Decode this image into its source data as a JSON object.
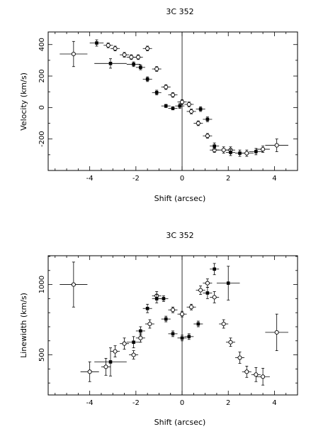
{
  "chart_data": [
    {
      "type": "scatter",
      "title": "3C 352",
      "xlabel": "Shift (arcsec)",
      "ylabel": "Velocity (km/s)",
      "xlim": [
        -5.8,
        5.0
      ],
      "ylim": [
        -400,
        480
      ],
      "xticks": [
        -4,
        -2,
        0,
        2,
        4
      ],
      "yticks": [
        -200,
        0,
        200,
        400
      ],
      "zero_line_x": 0,
      "series": [
        {
          "marker": "open-circle",
          "points": [
            {
              "x": -4.7,
              "y": 340,
              "xerr": 0.6,
              "yerr": 80
            },
            {
              "x": -3.2,
              "y": 395,
              "xerr": 0.2,
              "yerr": 15
            },
            {
              "x": -2.9,
              "y": 375,
              "xerr": 0.2,
              "yerr": 15
            },
            {
              "x": -2.5,
              "y": 335,
              "xerr": 0.2,
              "yerr": 15
            },
            {
              "x": -2.2,
              "y": 320,
              "xerr": 0.2,
              "yerr": 15
            },
            {
              "x": -1.9,
              "y": 320,
              "xerr": 0.2,
              "yerr": 15
            },
            {
              "x": -1.5,
              "y": 375,
              "xerr": 0.2,
              "yerr": 15
            },
            {
              "x": -1.1,
              "y": 245,
              "xerr": 0.2,
              "yerr": 15
            },
            {
              "x": -0.7,
              "y": 130,
              "xerr": 0.2,
              "yerr": 15
            },
            {
              "x": -0.4,
              "y": 80,
              "xerr": 0.2,
              "yerr": 15
            },
            {
              "x": 0.0,
              "y": 35,
              "xerr": 0.2,
              "yerr": 15
            },
            {
              "x": 0.3,
              "y": 20,
              "xerr": 0.2,
              "yerr": 15
            },
            {
              "x": 0.4,
              "y": -25,
              "xerr": 0.2,
              "yerr": 15
            },
            {
              "x": 0.7,
              "y": -100,
              "xerr": 0.2,
              "yerr": 15
            },
            {
              "x": 1.1,
              "y": -180,
              "xerr": 0.2,
              "yerr": 15
            },
            {
              "x": 1.4,
              "y": -270,
              "xerr": 0.2,
              "yerr": 15
            },
            {
              "x": 1.8,
              "y": -270,
              "xerr": 0.3,
              "yerr": 20
            },
            {
              "x": 2.1,
              "y": -270,
              "xerr": 0.2,
              "yerr": 20
            },
            {
              "x": 2.8,
              "y": -290,
              "xerr": 0.3,
              "yerr": 20
            },
            {
              "x": 3.5,
              "y": -265,
              "xerr": 0.3,
              "yerr": 20
            },
            {
              "x": 4.1,
              "y": -240,
              "xerr": 0.5,
              "yerr": 40
            }
          ]
        },
        {
          "marker": "filled-square",
          "points": [
            {
              "x": -3.7,
              "y": 410,
              "xerr": 0.3,
              "yerr": 20
            },
            {
              "x": -3.1,
              "y": 280,
              "xerr": 0.7,
              "yerr": 30
            },
            {
              "x": -2.1,
              "y": 275,
              "xerr": 0.3,
              "yerr": 15
            },
            {
              "x": -1.8,
              "y": 255,
              "xerr": 0.2,
              "yerr": 15
            },
            {
              "x": -1.5,
              "y": 180,
              "xerr": 0.2,
              "yerr": 15
            },
            {
              "x": -1.1,
              "y": 95,
              "xerr": 0.2,
              "yerr": 15
            },
            {
              "x": -0.7,
              "y": 10,
              "xerr": 0.2,
              "yerr": 10
            },
            {
              "x": -0.4,
              "y": -5,
              "xerr": 0.2,
              "yerr": 10
            },
            {
              "x": -0.1,
              "y": 10,
              "xerr": 0.2,
              "yerr": 15
            },
            {
              "x": 0.8,
              "y": -10,
              "xerr": 0.2,
              "yerr": 15
            },
            {
              "x": 1.1,
              "y": -75,
              "xerr": 0.2,
              "yerr": 15
            },
            {
              "x": 1.4,
              "y": -245,
              "xerr": 0.2,
              "yerr": 20
            },
            {
              "x": 2.1,
              "y": -285,
              "xerr": 0.2,
              "yerr": 20
            },
            {
              "x": 2.5,
              "y": -290,
              "xerr": 0.2,
              "yerr": 20
            },
            {
              "x": 3.2,
              "y": -280,
              "xerr": 0.3,
              "yerr": 20
            }
          ]
        }
      ]
    },
    {
      "type": "scatter",
      "title": "3C 352",
      "xlabel": "Shift (arcsec)",
      "ylabel": "Linewidth (km/s)",
      "xlim": [
        -5.8,
        5.0
      ],
      "ylim": [
        215,
        1205
      ],
      "xticks": [
        -4,
        -2,
        0,
        2,
        4
      ],
      "yticks": [
        500,
        1000
      ],
      "zero_line_x": 0,
      "series": [
        {
          "marker": "open-circle",
          "points": [
            {
              "x": -4.7,
              "y": 1000,
              "xerr": 0.6,
              "yerr": 160
            },
            {
              "x": -4.0,
              "y": 380,
              "xerr": 0.4,
              "yerr": 70
            },
            {
              "x": -3.3,
              "y": 415,
              "xerr": 0.2,
              "yerr": 60
            },
            {
              "x": -2.9,
              "y": 525,
              "xerr": 0.2,
              "yerr": 40
            },
            {
              "x": -2.5,
              "y": 580,
              "xerr": 0.2,
              "yerr": 40
            },
            {
              "x": -2.1,
              "y": 500,
              "xerr": 0.2,
              "yerr": 30
            },
            {
              "x": -1.8,
              "y": 620,
              "xerr": 0.2,
              "yerr": 30
            },
            {
              "x": -1.4,
              "y": 720,
              "xerr": 0.2,
              "yerr": 30
            },
            {
              "x": -1.1,
              "y": 920,
              "xerr": 0.2,
              "yerr": 30
            },
            {
              "x": -0.4,
              "y": 820,
              "xerr": 0.2,
              "yerr": 20
            },
            {
              "x": 0.0,
              "y": 790,
              "xerr": 0.2,
              "yerr": 20
            },
            {
              "x": 0.4,
              "y": 840,
              "xerr": 0.2,
              "yerr": 20
            },
            {
              "x": 0.8,
              "y": 960,
              "xerr": 0.2,
              "yerr": 30
            },
            {
              "x": 1.1,
              "y": 1010,
              "xerr": 0.2,
              "yerr": 30
            },
            {
              "x": 1.4,
              "y": 910,
              "xerr": 0.2,
              "yerr": 40
            },
            {
              "x": 1.8,
              "y": 720,
              "xerr": 0.2,
              "yerr": 30
            },
            {
              "x": 2.1,
              "y": 590,
              "xerr": 0.2,
              "yerr": 30
            },
            {
              "x": 2.5,
              "y": 480,
              "xerr": 0.2,
              "yerr": 40
            },
            {
              "x": 2.8,
              "y": 380,
              "xerr": 0.2,
              "yerr": 40
            },
            {
              "x": 3.2,
              "y": 360,
              "xerr": 0.2,
              "yerr": 50
            },
            {
              "x": 3.5,
              "y": 345,
              "xerr": 0.3,
              "yerr": 60
            },
            {
              "x": 4.1,
              "y": 660,
              "xerr": 0.5,
              "yerr": 130
            }
          ]
        },
        {
          "marker": "filled-square",
          "points": [
            {
              "x": -3.1,
              "y": 450,
              "xerr": 0.7,
              "yerr": 100
            },
            {
              "x": -2.1,
              "y": 590,
              "xerr": 0.3,
              "yerr": 40
            },
            {
              "x": -1.8,
              "y": 670,
              "xerr": 0.2,
              "yerr": 30
            },
            {
              "x": -1.5,
              "y": 830,
              "xerr": 0.2,
              "yerr": 30
            },
            {
              "x": -1.1,
              "y": 900,
              "xerr": 0.2,
              "yerr": 30
            },
            {
              "x": -0.8,
              "y": 900,
              "xerr": 0.2,
              "yerr": 20
            },
            {
              "x": -0.7,
              "y": 755,
              "xerr": 0.2,
              "yerr": 20
            },
            {
              "x": -0.4,
              "y": 650,
              "xerr": 0.2,
              "yerr": 20
            },
            {
              "x": 0.0,
              "y": 620,
              "xerr": 0.2,
              "yerr": 20
            },
            {
              "x": 0.3,
              "y": 630,
              "xerr": 0.2,
              "yerr": 20
            },
            {
              "x": 0.7,
              "y": 720,
              "xerr": 0.2,
              "yerr": 20
            },
            {
              "x": 1.1,
              "y": 940,
              "xerr": 0.2,
              "yerr": 40
            },
            {
              "x": 1.4,
              "y": 1110,
              "xerr": 0.2,
              "yerr": 40
            },
            {
              "x": 2.0,
              "y": 1010,
              "xerr": 0.5,
              "yerr": 120
            }
          ]
        }
      ]
    }
  ]
}
